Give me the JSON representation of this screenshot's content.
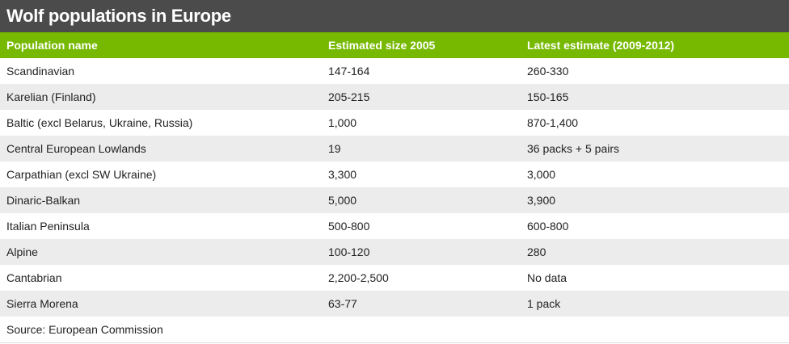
{
  "title": "Wolf populations in Europe",
  "colors": {
    "title_bar": "#4b4b4b",
    "header_bar": "#76b900",
    "row_alt": "#ececec"
  },
  "table": {
    "headers": [
      "Population name",
      "Estimated size 2005",
      "Latest estimate (2009-2012)"
    ],
    "rows": [
      [
        "Scandinavian",
        "147-164",
        "260-330"
      ],
      [
        "Karelian (Finland)",
        "205-215",
        "150-165"
      ],
      [
        "Baltic (excl Belarus, Ukraine, Russia)",
        "1,000",
        "870-1,400"
      ],
      [
        "Central European Lowlands",
        "19",
        "36 packs + 5 pairs"
      ],
      [
        "Carpathian (excl SW Ukraine)",
        "3,300",
        "3,000"
      ],
      [
        "Dinaric-Balkan",
        "5,000",
        "3,900"
      ],
      [
        "Italian Peninsula",
        "500-800",
        "600-800"
      ],
      [
        "Alpine",
        "100-120",
        "280"
      ],
      [
        "Cantabrian",
        "2,200-2,500",
        "No data"
      ],
      [
        "Sierra Morena",
        "63-77",
        "1 pack"
      ]
    ]
  },
  "source": "Source: European Commission"
}
